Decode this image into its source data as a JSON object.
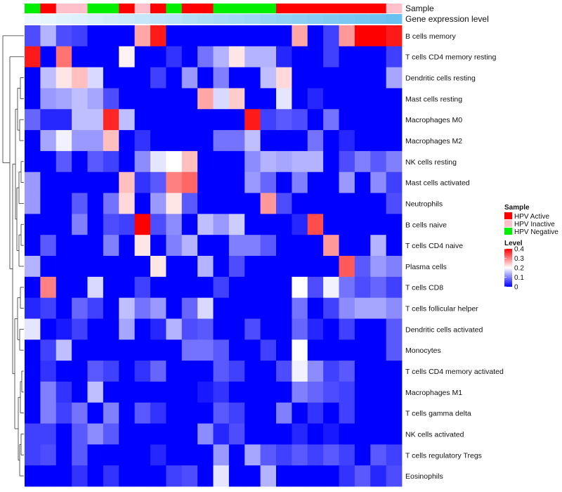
{
  "chart_data": {
    "type": "heatmap",
    "annotation_titles": {
      "sample": "Sample",
      "gene_expression": "Gene expression level"
    },
    "sample_legend": {
      "title": "Sample",
      "entries": [
        {
          "label": "HPV Active",
          "color": "#ff0000"
        },
        {
          "label": "HPV Inactive",
          "color": "#ffc0cb"
        },
        {
          "label": "HPV Negative",
          "color": "#00ee00"
        }
      ]
    },
    "level_legend": {
      "title": "Level",
      "ticks": [
        "0.4",
        "0.3",
        "0.2",
        "0.1",
        "0"
      ],
      "range": [
        0,
        0.4
      ],
      "low_color": "#0000ff",
      "mid_color": "#ffffff",
      "high_color": "#ff0000"
    },
    "samples": [
      "g",
      "r",
      "p",
      "p",
      "g",
      "g",
      "r",
      "p",
      "r",
      "g",
      "r",
      "r",
      "g",
      "g",
      "g",
      "g",
      "r",
      "r",
      "r",
      "r",
      "r",
      "r",
      "r",
      "p"
    ],
    "gene_expression_colors": [
      "#eef7fd",
      "#e8f5fc",
      "#e2f2fc",
      "#ddf0fb",
      "#d7eefb",
      "#d1ebfa",
      "#cbe9fa",
      "#c6e6f9",
      "#c0e4f9",
      "#bae2f8",
      "#b4dff8",
      "#aeddf7",
      "#a9daf7",
      "#a3d8f6",
      "#9dd6f6",
      "#97d3f5",
      "#91d1f5",
      "#8ccef4",
      "#86ccf4",
      "#80c9f3",
      "#7ac7f3",
      "#75c5f2",
      "#6fc2f2",
      "#69c0f1"
    ],
    "rows": [
      {
        "name": "B cells memory",
        "values": [
          0.06,
          0.14,
          0.06,
          0.05,
          0,
          0,
          0,
          0.27,
          0.38,
          0,
          0,
          0,
          0,
          0,
          0,
          0,
          0,
          0.27,
          0,
          0.05,
          0.28,
          0.4,
          0.4,
          0.38
        ]
      },
      {
        "name": "T cells CD4 memory resting",
        "values": [
          0.38,
          0,
          0.31,
          0,
          0,
          0,
          0.21,
          0,
          0,
          0.04,
          0,
          0.09,
          0.14,
          0.22,
          0.14,
          0.14,
          0.03,
          0,
          0,
          0.05,
          0,
          0,
          0,
          0.05
        ]
      },
      {
        "name": "Dendritic cells resting",
        "values": [
          0,
          0.15,
          0.22,
          0.25,
          0.17,
          0,
          0,
          0,
          0.05,
          0,
          0.12,
          0,
          0.1,
          0,
          0,
          0.15,
          0.23,
          0,
          0,
          0,
          0,
          0,
          0,
          0.13
        ]
      },
      {
        "name": "Mast cells resting",
        "values": [
          0,
          0.12,
          0.13,
          0.15,
          0.13,
          0.06,
          0,
          0,
          0,
          0,
          0,
          0.27,
          0.17,
          0.24,
          0,
          0,
          0.18,
          0,
          0.03,
          0,
          0,
          0,
          0,
          0
        ]
      },
      {
        "name": "Macrophages M0",
        "values": [
          0.08,
          0.03,
          0.03,
          0.15,
          0.15,
          0.37,
          0.15,
          0,
          0,
          0,
          0,
          0,
          0,
          0,
          0.38,
          0.05,
          0.07,
          0.06,
          0,
          0.09,
          0,
          0,
          0,
          0
        ]
      },
      {
        "name": "Macrophages M2",
        "values": [
          0,
          0.13,
          0.19,
          0.12,
          0.12,
          0.25,
          0,
          0.04,
          0,
          0,
          0,
          0,
          0.09,
          0.09,
          0.15,
          0,
          0,
          0,
          0.09,
          0,
          0.03,
          0,
          0,
          0
        ]
      },
      {
        "name": "NK cells resting",
        "values": [
          0,
          0,
          0.07,
          0,
          0.07,
          0.05,
          0,
          0.11,
          0.18,
          0.2,
          0.25,
          0,
          0,
          0,
          0.11,
          0.14,
          0.13,
          0.14,
          0.14,
          0,
          0.06,
          0.1,
          0.07,
          0.1
        ]
      },
      {
        "name": "Mast cells activated",
        "values": [
          0.12,
          0,
          0,
          0,
          0,
          0,
          0.25,
          0.04,
          0.07,
          0.3,
          0.32,
          0,
          0,
          0,
          0.12,
          0.08,
          0,
          0.1,
          0,
          0,
          0.12,
          0,
          0.11,
          0.05
        ]
      },
      {
        "name": "Neutrophils",
        "values": [
          0.12,
          0,
          0,
          0.07,
          0,
          0.09,
          0.23,
          0,
          0.12,
          0.22,
          0.07,
          0,
          0,
          0,
          0,
          0.28,
          0.06,
          0,
          0,
          0,
          0,
          0,
          0,
          0.06
        ]
      },
      {
        "name": "B cells naive",
        "values": [
          0,
          0,
          0,
          0.1,
          0,
          0.06,
          0.05,
          0.4,
          0.06,
          0.11,
          0,
          0.15,
          0.12,
          0.16,
          0,
          0,
          0,
          0.03,
          0.34,
          0,
          0,
          0,
          0,
          0
        ]
      },
      {
        "name": "T cells CD4 naive",
        "values": [
          0,
          0.07,
          0,
          0,
          0,
          0.1,
          0,
          0.22,
          0,
          0.1,
          0.14,
          0,
          0,
          0.1,
          0.1,
          0.07,
          0,
          0,
          0,
          0.28,
          0,
          0,
          0.14,
          0
        ]
      },
      {
        "name": "Plasma cells",
        "values": [
          0.14,
          0,
          0,
          0,
          0,
          0,
          0,
          0,
          0.22,
          0,
          0,
          0.14,
          0,
          0.06,
          0,
          0,
          0,
          0,
          0,
          0,
          0.33,
          0.07,
          0.12,
          0.1
        ]
      },
      {
        "name": "T cells CD8",
        "values": [
          0,
          0.3,
          0,
          0,
          0.17,
          0,
          0,
          0.05,
          0,
          0,
          0,
          0,
          0.05,
          0,
          0,
          0,
          0,
          0.2,
          0.06,
          0.19,
          0.09,
          0.06,
          0.08,
          0.05
        ]
      },
      {
        "name": "T cells follicular helper",
        "values": [
          0.03,
          0.05,
          0,
          0.08,
          0.05,
          0,
          0.15,
          0.09,
          0.12,
          0,
          0.08,
          0.17,
          0,
          0,
          0,
          0,
          0,
          0.09,
          0,
          0.05,
          0.11,
          0.13,
          0.13,
          0.11
        ]
      },
      {
        "name": "Dendritic cells activated",
        "values": [
          0.18,
          0,
          0.02,
          0.05,
          0,
          0,
          0.13,
          0,
          0.03,
          0.14,
          0.06,
          0.07,
          0,
          0,
          0.06,
          0,
          0,
          0.08,
          0.03,
          0,
          0.05,
          0,
          0,
          0.07
        ]
      },
      {
        "name": "Monocytes",
        "values": [
          0,
          0.05,
          0.15,
          0,
          0,
          0,
          0,
          0,
          0,
          0,
          0.09,
          0.09,
          0.07,
          0,
          0,
          0.05,
          0,
          0.2,
          0,
          0,
          0,
          0,
          0,
          0.07
        ]
      },
      {
        "name": "T cells CD4 memory activated",
        "values": [
          0,
          0.04,
          0,
          0,
          0.07,
          0.05,
          0,
          0.04,
          0.08,
          0,
          0,
          0,
          0.07,
          0.05,
          0,
          0,
          0.06,
          0.19,
          0.11,
          0.05,
          0.07,
          0,
          0,
          0
        ]
      },
      {
        "name": "Macrophages M1",
        "values": [
          0,
          0.1,
          0.04,
          0,
          0.15,
          0,
          0,
          0,
          0,
          0,
          0,
          0.02,
          0.04,
          0,
          0,
          0,
          0,
          0.1,
          0.08,
          0.06,
          0.05,
          0,
          0,
          0
        ]
      },
      {
        "name": "T cells gamma delta",
        "values": [
          0,
          0.1,
          0.05,
          0.09,
          0,
          0.1,
          0,
          0.07,
          0.04,
          0,
          0,
          0,
          0.07,
          0.05,
          0,
          0,
          0.1,
          0,
          0.04,
          0,
          0.05,
          0,
          0,
          0
        ]
      },
      {
        "name": "NK cells activated",
        "values": [
          0.05,
          0.05,
          0,
          0.07,
          0.11,
          0.07,
          0,
          0,
          0,
          0,
          0,
          0.11,
          0.03,
          0.06,
          0,
          0,
          0,
          0.03,
          0,
          0.02,
          0,
          0,
          0,
          0
        ]
      },
      {
        "name": "T cells regulatory  Tregs",
        "values": [
          0.05,
          0.06,
          0,
          0.07,
          0,
          0,
          0,
          0,
          0.03,
          0,
          0,
          0,
          0.12,
          0,
          0.13,
          0.07,
          0.05,
          0.07,
          0.05,
          0.07,
          0.05,
          0,
          0.07,
          0.05
        ]
      },
      {
        "name": "Eosinophils",
        "values": [
          0,
          0,
          0,
          0.04,
          0,
          0.04,
          0,
          0,
          0,
          0.05,
          0.06,
          0,
          0.18,
          0,
          0,
          0.14,
          0,
          0,
          0,
          0,
          0.04,
          0.07,
          0.03,
          0.06
        ]
      }
    ]
  }
}
